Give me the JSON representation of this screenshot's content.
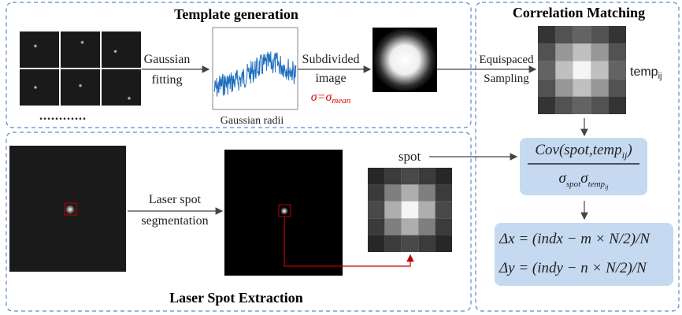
{
  "template_panel": {
    "title": "Template generation",
    "fitting_label": [
      "Gaussian",
      "fitting"
    ],
    "plot_xlabel": "Gaussian radii",
    "subdivided_label": [
      "Subdivided",
      "image"
    ],
    "sigma": {
      "lhs": "σ=σ",
      "sub": "mean"
    },
    "ellipsis": "............"
  },
  "correlation_panel": {
    "title": "Correlation Matching",
    "sampling_label": [
      "Equispaced",
      "Sampling"
    ],
    "template_label": {
      "main": "temp",
      "sub": "ij"
    },
    "numerator": {
      "main": "Cov(spot,temp",
      "sub": "ij",
      "end": ")"
    },
    "denominator": {
      "s1": "σ",
      "sub1": "spot",
      "s2": "σ",
      "sub2": "temp",
      "subsub": "ij"
    },
    "dx": "Δx = (indx − m × N/2)/N",
    "dy": "Δy = (indy − n × N/2)/N"
  },
  "extraction_panel": {
    "title": "Laser Spot Extraction",
    "segmentation_label": [
      "Laser spot",
      "segmentation"
    ],
    "spot_label": "spot"
  }
}
